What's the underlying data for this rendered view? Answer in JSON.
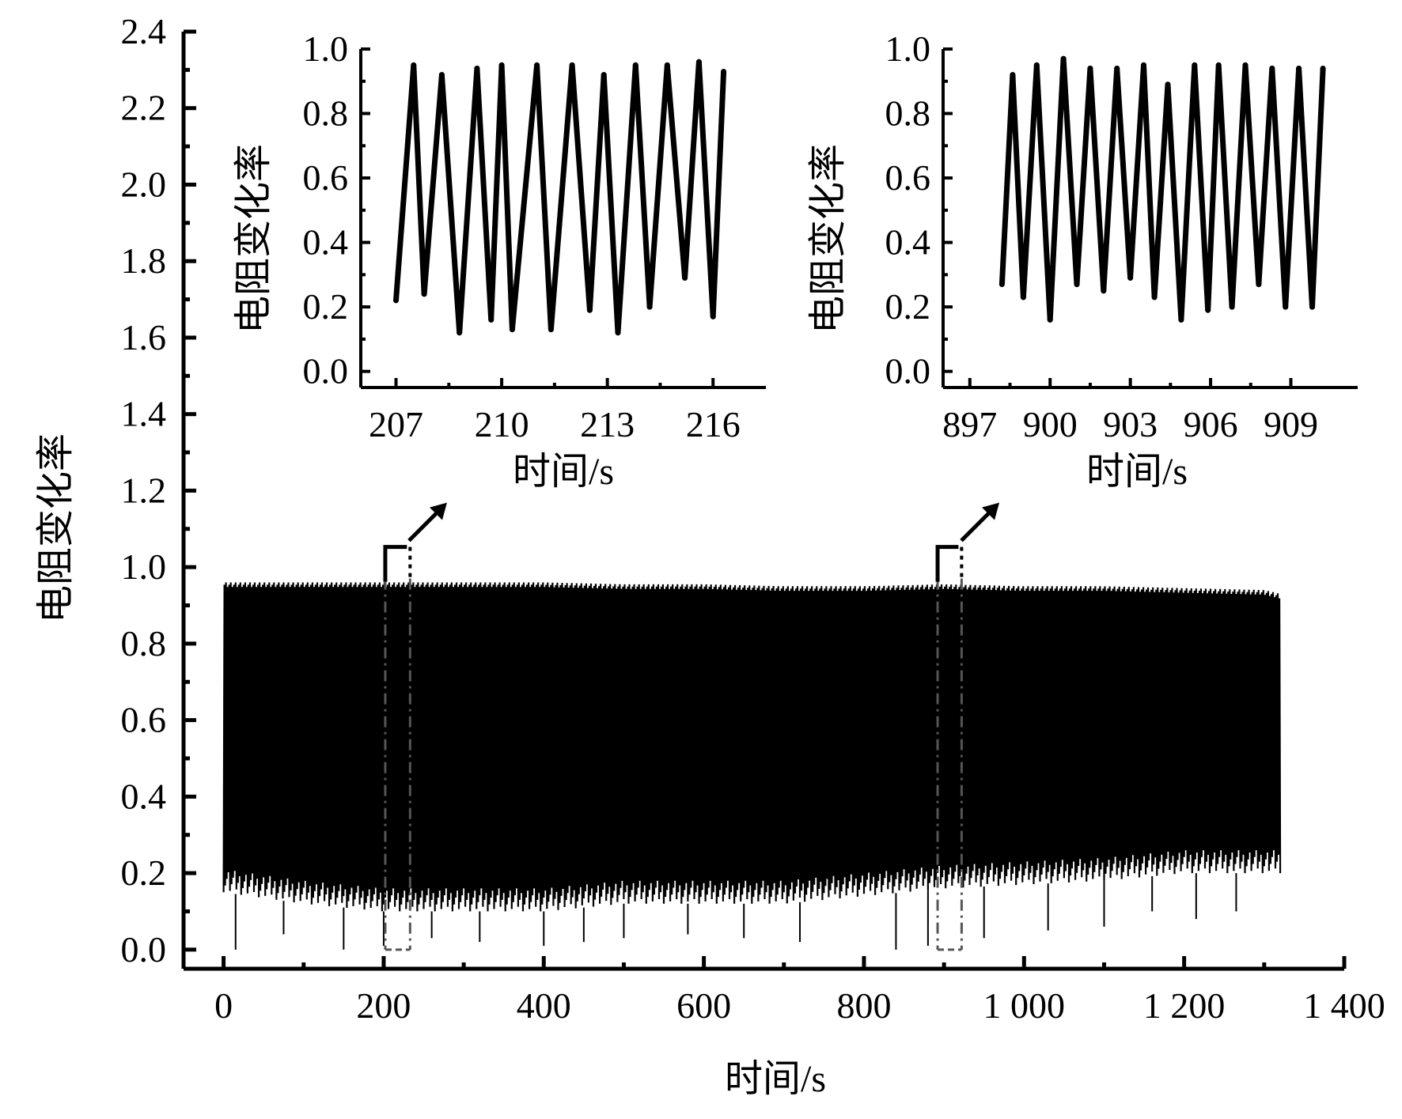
{
  "colors": {
    "ink": "#000000",
    "background": "#ffffff",
    "zoom_marker": "#555555"
  },
  "chart_data": [
    {
      "type": "line",
      "id": "main",
      "title": "",
      "xlabel": "时间/s",
      "ylabel": "电阻变化率",
      "xlim": [
        -50,
        1400
      ],
      "ylim": [
        -0.05,
        2.4
      ],
      "xticks": [
        0,
        200,
        400,
        600,
        800,
        1000,
        1200,
        1400
      ],
      "xtick_labels": [
        "0",
        "200",
        "400",
        "600",
        "800",
        "1 000",
        "1 200",
        "1 400"
      ],
      "yticks": [
        0.0,
        0.2,
        0.4,
        0.6,
        0.8,
        1.0,
        1.2,
        1.4,
        1.6,
        1.8,
        2.0,
        2.2,
        2.4
      ],
      "ytick_labels": [
        "0.0",
        "0.2",
        "0.4",
        "0.6",
        "0.8",
        "1.0",
        "1.2",
        "1.4",
        "1.6",
        "1.8",
        "2.0",
        "2.2",
        "2.4"
      ],
      "grid": false,
      "legend": "none",
      "series": [
        {
          "envelope_upper": {
            "x": [
              0,
              100,
              200,
              300,
              400,
              500,
              600,
              700,
              800,
              900,
              1000,
              1100,
              1200,
              1300,
              1320
            ],
            "y": [
              0.96,
              0.96,
              0.96,
              0.96,
              0.96,
              0.955,
              0.955,
              0.95,
              0.95,
              0.955,
              0.95,
              0.95,
              0.945,
              0.94,
              0.93
            ]
          },
          "envelope_lower": {
            "x": [
              0,
              100,
              200,
              300,
              400,
              500,
              600,
              700,
              800,
              900,
              1000,
              1100,
              1200,
              1300,
              1320
            ],
            "y": [
              0.15,
              0.12,
              0.1,
              0.1,
              0.1,
              0.12,
              0.12,
              0.12,
              0.14,
              0.16,
              0.17,
              0.18,
              0.2,
              0.2,
              0.2
            ]
          },
          "minimum_dips": {
            "x": [
              15,
              75,
              150,
              200,
              260,
              320,
              400,
              450,
              500,
              580,
              650,
              720,
              840,
              880,
              950,
              1030,
              1100,
              1160,
              1215,
              1265
            ],
            "y": [
              0.0,
              0.04,
              0.0,
              0.01,
              0.03,
              0.02,
              0.01,
              0.02,
              0.03,
              0.04,
              0.03,
              0.02,
              0.0,
              0.01,
              0.03,
              0.05,
              0.06,
              0.1,
              0.08,
              0.1
            ]
          }
        }
      ],
      "zoom_windows": [
        {
          "x": [
            202,
            233
          ],
          "y": [
            0.0,
            0.97
          ]
        },
        {
          "x": [
            892,
            922
          ],
          "y": [
            0.0,
            0.97
          ]
        }
      ]
    },
    {
      "type": "line",
      "id": "inset-left",
      "title": "",
      "xlabel": "时间/s",
      "ylabel": "电阻变化率",
      "xlim": [
        206,
        217.5
      ],
      "ylim": [
        -0.05,
        1.0
      ],
      "xticks": [
        207,
        210,
        213,
        216
      ],
      "xtick_labels": [
        "207",
        "210",
        "213",
        "216"
      ],
      "yticks": [
        0.0,
        0.2,
        0.4,
        0.6,
        0.8,
        1.0
      ],
      "ytick_labels": [
        "0.0",
        "0.2",
        "0.4",
        "0.6",
        "0.8",
        "1.0"
      ],
      "series": [
        {
          "x": [
            207.0,
            207.5,
            207.8,
            208.3,
            208.8,
            209.3,
            209.7,
            210.0,
            210.3,
            211.0,
            211.4,
            212.0,
            212.5,
            212.9,
            213.3,
            213.8,
            214.2,
            214.7,
            215.2,
            215.6,
            216.0,
            216.3
          ],
          "y": [
            0.22,
            0.95,
            0.24,
            0.92,
            0.12,
            0.94,
            0.16,
            0.95,
            0.13,
            0.95,
            0.13,
            0.95,
            0.19,
            0.92,
            0.12,
            0.95,
            0.2,
            0.95,
            0.29,
            0.96,
            0.17,
            0.93
          ]
        }
      ]
    },
    {
      "type": "line",
      "id": "inset-right",
      "title": "",
      "xlabel": "时间/s",
      "ylabel": "电阻变化率",
      "xlim": [
        896,
        911.5
      ],
      "ylim": [
        -0.05,
        1.0
      ],
      "xticks": [
        897,
        900,
        903,
        906,
        909
      ],
      "xtick_labels": [
        "897",
        "900",
        "903",
        "906",
        "909"
      ],
      "yticks": [
        0.0,
        0.2,
        0.4,
        0.6,
        0.8,
        1.0
      ],
      "ytick_labels": [
        "0.0",
        "0.2",
        "0.4",
        "0.6",
        "0.8",
        "1.0"
      ],
      "series": [
        {
          "x": [
            898.2,
            898.6,
            899.0,
            899.5,
            900.0,
            900.5,
            901.0,
            901.5,
            902.0,
            902.5,
            903.0,
            903.5,
            903.9,
            904.4,
            904.9,
            905.4,
            905.9,
            906.3,
            906.8,
            907.3,
            907.8,
            908.3,
            908.8,
            909.3,
            909.8,
            910.2
          ],
          "y": [
            0.27,
            0.92,
            0.23,
            0.95,
            0.16,
            0.97,
            0.27,
            0.94,
            0.25,
            0.94,
            0.29,
            0.95,
            0.23,
            0.89,
            0.16,
            0.95,
            0.19,
            0.95,
            0.2,
            0.95,
            0.27,
            0.94,
            0.2,
            0.94,
            0.2,
            0.94
          ]
        }
      ]
    }
  ]
}
